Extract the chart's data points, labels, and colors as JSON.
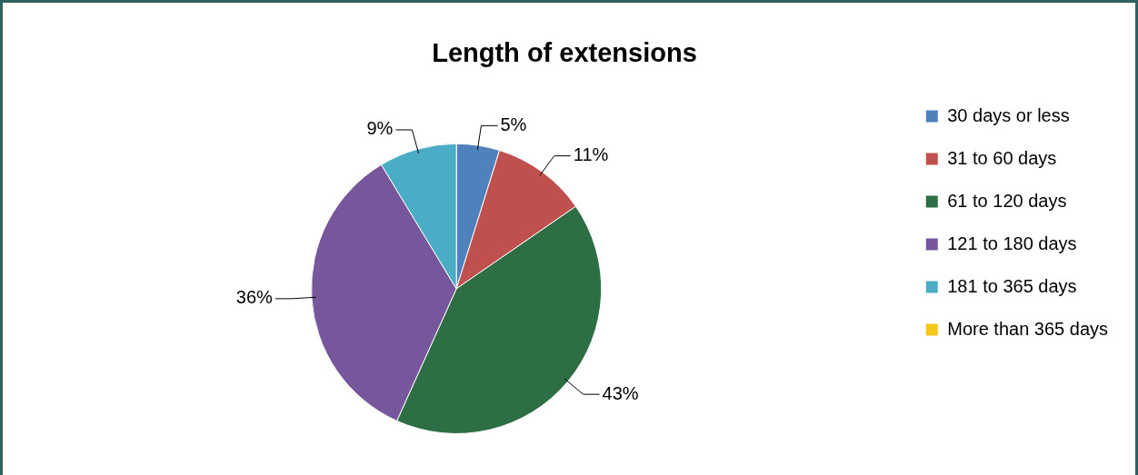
{
  "chart_data": {
    "type": "pie",
    "title": "Length of extensions",
    "categories": [
      "30 days or less",
      "31 to 60 days",
      "61 to 120 days",
      "121 to 180 days",
      "181 to 365 days",
      "More than 365 days"
    ],
    "values": [
      5,
      11,
      43,
      36,
      9,
      0
    ],
    "colors": [
      "#4f81bd",
      "#c0504d",
      "#2e6e44",
      "#76579c",
      "#4bacc6",
      "#f5c518"
    ],
    "value_labels": [
      "5%",
      "11%",
      "43%",
      "36%",
      "9%",
      null
    ],
    "legend": "right"
  }
}
